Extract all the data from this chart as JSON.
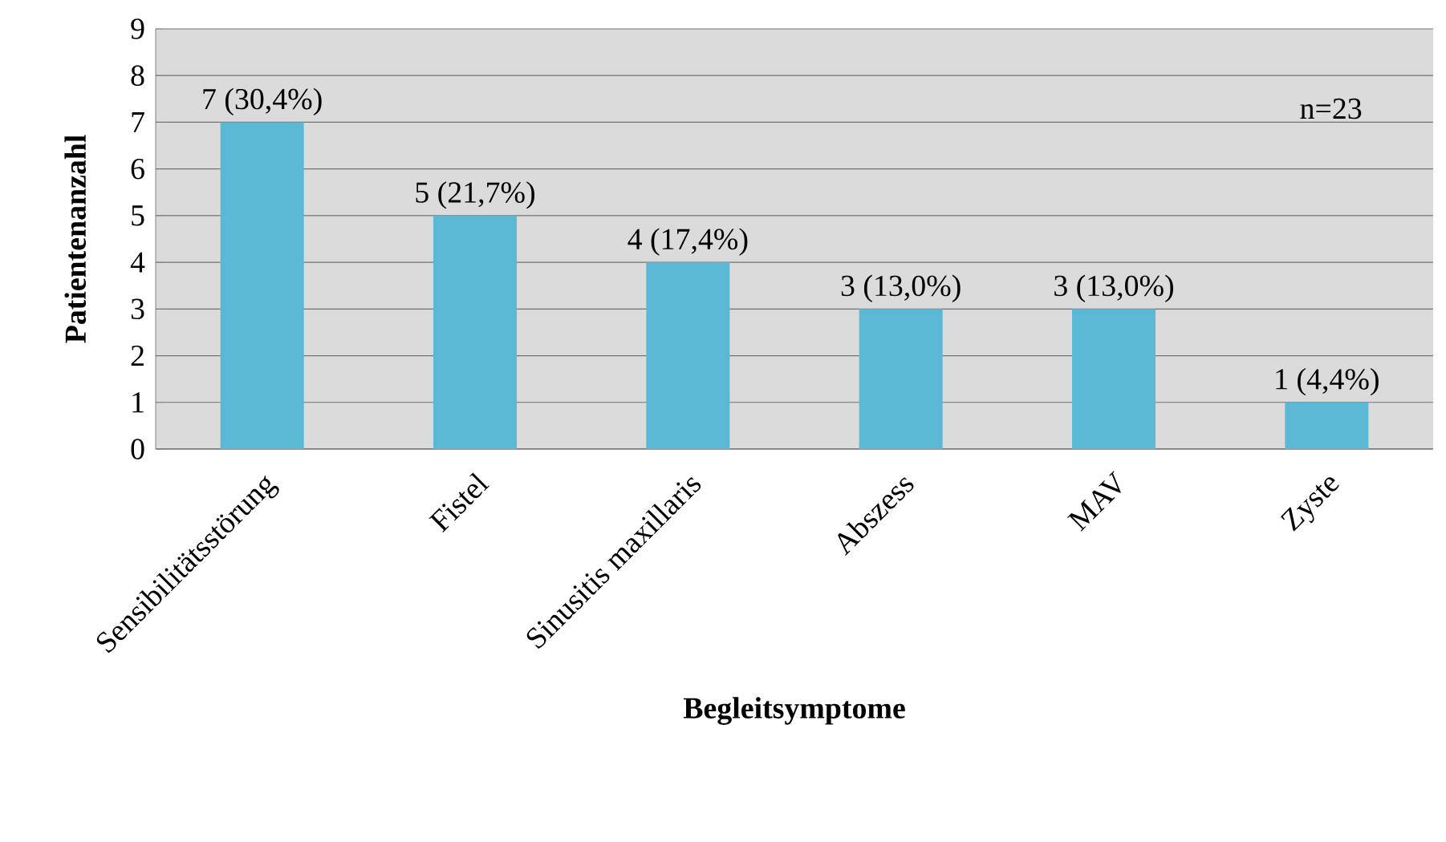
{
  "chart_data": {
    "type": "bar",
    "xlabel": "Begleitsymptome",
    "ylabel": "Patientenanzahl",
    "categories": [
      "Sensibilitätsstörung",
      "Fistel",
      "Sinusitis maxillaris",
      "Abszess",
      "MAV",
      "Zyste"
    ],
    "values": [
      7,
      5,
      4,
      3,
      3,
      1
    ],
    "value_labels": [
      "7 (30,4%)",
      "5 (21,7%)",
      "4 (17,4%)",
      "3 (13,0%)",
      "3 (13,0%)",
      "1 (4,4%)"
    ],
    "color": "#5bb8d4",
    "ylim": [
      0,
      9
    ],
    "yticks": [
      0,
      1,
      2,
      3,
      4,
      5,
      6,
      7,
      8,
      9
    ],
    "grid": "y",
    "annotations": [
      "n=23"
    ]
  }
}
